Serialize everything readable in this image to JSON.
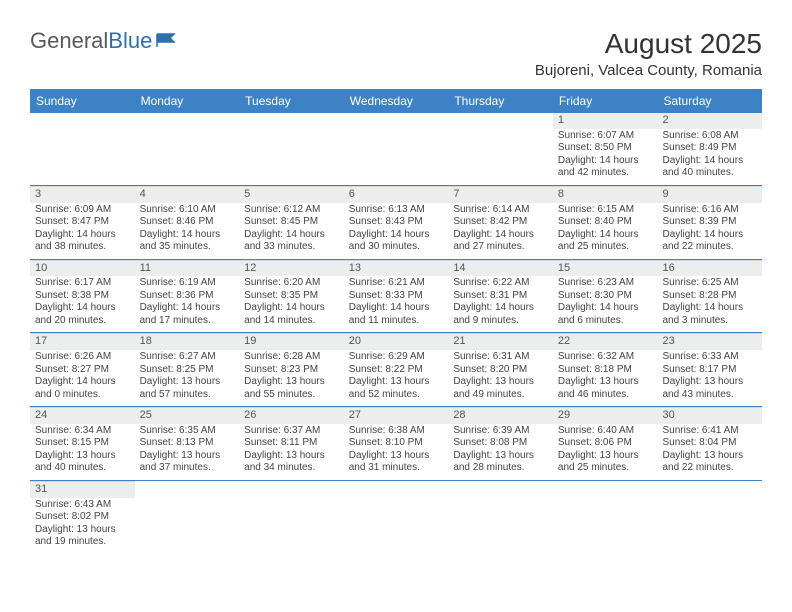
{
  "logo": {
    "text_gray": "General",
    "text_blue": "Blue"
  },
  "title": "August 2025",
  "location": "Bujoreni, Valcea County, Romania",
  "colors": {
    "header_bg": "#3c82c4",
    "header_text": "#ffffff",
    "cell_border": "#3c82c4",
    "daynum_bg": "#eceeee",
    "text": "#444444"
  },
  "day_names": [
    "Sunday",
    "Monday",
    "Tuesday",
    "Wednesday",
    "Thursday",
    "Friday",
    "Saturday"
  ],
  "weeks": [
    [
      {
        "empty": true
      },
      {
        "empty": true
      },
      {
        "empty": true
      },
      {
        "empty": true
      },
      {
        "empty": true
      },
      {
        "day": "1",
        "sunrise": "Sunrise: 6:07 AM",
        "sunset": "Sunset: 8:50 PM",
        "daylight": "Daylight: 14 hours and 42 minutes."
      },
      {
        "day": "2",
        "sunrise": "Sunrise: 6:08 AM",
        "sunset": "Sunset: 8:49 PM",
        "daylight": "Daylight: 14 hours and 40 minutes."
      }
    ],
    [
      {
        "day": "3",
        "sunrise": "Sunrise: 6:09 AM",
        "sunset": "Sunset: 8:47 PM",
        "daylight": "Daylight: 14 hours and 38 minutes."
      },
      {
        "day": "4",
        "sunrise": "Sunrise: 6:10 AM",
        "sunset": "Sunset: 8:46 PM",
        "daylight": "Daylight: 14 hours and 35 minutes."
      },
      {
        "day": "5",
        "sunrise": "Sunrise: 6:12 AM",
        "sunset": "Sunset: 8:45 PM",
        "daylight": "Daylight: 14 hours and 33 minutes."
      },
      {
        "day": "6",
        "sunrise": "Sunrise: 6:13 AM",
        "sunset": "Sunset: 8:43 PM",
        "daylight": "Daylight: 14 hours and 30 minutes."
      },
      {
        "day": "7",
        "sunrise": "Sunrise: 6:14 AM",
        "sunset": "Sunset: 8:42 PM",
        "daylight": "Daylight: 14 hours and 27 minutes."
      },
      {
        "day": "8",
        "sunrise": "Sunrise: 6:15 AM",
        "sunset": "Sunset: 8:40 PM",
        "daylight": "Daylight: 14 hours and 25 minutes."
      },
      {
        "day": "9",
        "sunrise": "Sunrise: 6:16 AM",
        "sunset": "Sunset: 8:39 PM",
        "daylight": "Daylight: 14 hours and 22 minutes."
      }
    ],
    [
      {
        "day": "10",
        "sunrise": "Sunrise: 6:17 AM",
        "sunset": "Sunset: 8:38 PM",
        "daylight": "Daylight: 14 hours and 20 minutes."
      },
      {
        "day": "11",
        "sunrise": "Sunrise: 6:19 AM",
        "sunset": "Sunset: 8:36 PM",
        "daylight": "Daylight: 14 hours and 17 minutes."
      },
      {
        "day": "12",
        "sunrise": "Sunrise: 6:20 AM",
        "sunset": "Sunset: 8:35 PM",
        "daylight": "Daylight: 14 hours and 14 minutes."
      },
      {
        "day": "13",
        "sunrise": "Sunrise: 6:21 AM",
        "sunset": "Sunset: 8:33 PM",
        "daylight": "Daylight: 14 hours and 11 minutes."
      },
      {
        "day": "14",
        "sunrise": "Sunrise: 6:22 AM",
        "sunset": "Sunset: 8:31 PM",
        "daylight": "Daylight: 14 hours and 9 minutes."
      },
      {
        "day": "15",
        "sunrise": "Sunrise: 6:23 AM",
        "sunset": "Sunset: 8:30 PM",
        "daylight": "Daylight: 14 hours and 6 minutes."
      },
      {
        "day": "16",
        "sunrise": "Sunrise: 6:25 AM",
        "sunset": "Sunset: 8:28 PM",
        "daylight": "Daylight: 14 hours and 3 minutes."
      }
    ],
    [
      {
        "day": "17",
        "sunrise": "Sunrise: 6:26 AM",
        "sunset": "Sunset: 8:27 PM",
        "daylight": "Daylight: 14 hours and 0 minutes."
      },
      {
        "day": "18",
        "sunrise": "Sunrise: 6:27 AM",
        "sunset": "Sunset: 8:25 PM",
        "daylight": "Daylight: 13 hours and 57 minutes."
      },
      {
        "day": "19",
        "sunrise": "Sunrise: 6:28 AM",
        "sunset": "Sunset: 8:23 PM",
        "daylight": "Daylight: 13 hours and 55 minutes."
      },
      {
        "day": "20",
        "sunrise": "Sunrise: 6:29 AM",
        "sunset": "Sunset: 8:22 PM",
        "daylight": "Daylight: 13 hours and 52 minutes."
      },
      {
        "day": "21",
        "sunrise": "Sunrise: 6:31 AM",
        "sunset": "Sunset: 8:20 PM",
        "daylight": "Daylight: 13 hours and 49 minutes."
      },
      {
        "day": "22",
        "sunrise": "Sunrise: 6:32 AM",
        "sunset": "Sunset: 8:18 PM",
        "daylight": "Daylight: 13 hours and 46 minutes."
      },
      {
        "day": "23",
        "sunrise": "Sunrise: 6:33 AM",
        "sunset": "Sunset: 8:17 PM",
        "daylight": "Daylight: 13 hours and 43 minutes."
      }
    ],
    [
      {
        "day": "24",
        "sunrise": "Sunrise: 6:34 AM",
        "sunset": "Sunset: 8:15 PM",
        "daylight": "Daylight: 13 hours and 40 minutes."
      },
      {
        "day": "25",
        "sunrise": "Sunrise: 6:35 AM",
        "sunset": "Sunset: 8:13 PM",
        "daylight": "Daylight: 13 hours and 37 minutes."
      },
      {
        "day": "26",
        "sunrise": "Sunrise: 6:37 AM",
        "sunset": "Sunset: 8:11 PM",
        "daylight": "Daylight: 13 hours and 34 minutes."
      },
      {
        "day": "27",
        "sunrise": "Sunrise: 6:38 AM",
        "sunset": "Sunset: 8:10 PM",
        "daylight": "Daylight: 13 hours and 31 minutes."
      },
      {
        "day": "28",
        "sunrise": "Sunrise: 6:39 AM",
        "sunset": "Sunset: 8:08 PM",
        "daylight": "Daylight: 13 hours and 28 minutes."
      },
      {
        "day": "29",
        "sunrise": "Sunrise: 6:40 AM",
        "sunset": "Sunset: 8:06 PM",
        "daylight": "Daylight: 13 hours and 25 minutes."
      },
      {
        "day": "30",
        "sunrise": "Sunrise: 6:41 AM",
        "sunset": "Sunset: 8:04 PM",
        "daylight": "Daylight: 13 hours and 22 minutes."
      }
    ],
    [
      {
        "day": "31",
        "sunrise": "Sunrise: 6:43 AM",
        "sunset": "Sunset: 8:02 PM",
        "daylight": "Daylight: 13 hours and 19 minutes."
      },
      {
        "empty": true
      },
      {
        "empty": true
      },
      {
        "empty": true
      },
      {
        "empty": true
      },
      {
        "empty": true
      },
      {
        "empty": true
      }
    ]
  ]
}
